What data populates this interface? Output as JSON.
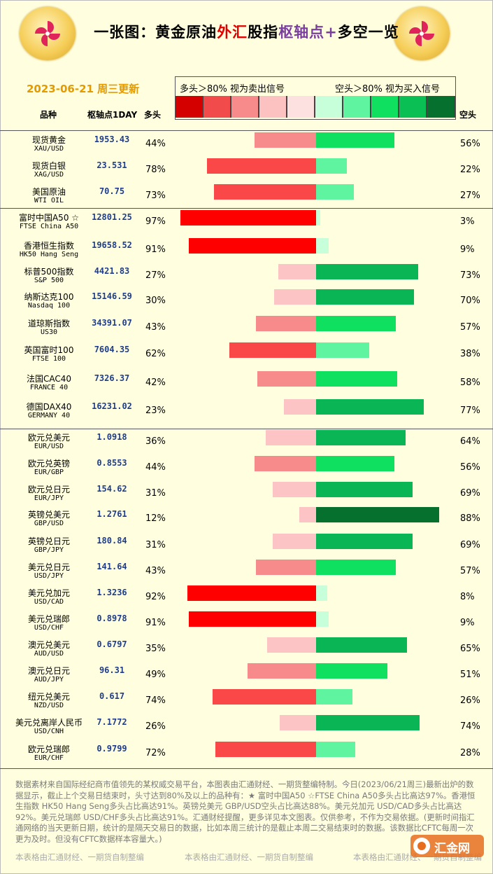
{
  "title_parts": [
    {
      "text": "一张图：黄金原油",
      "color": "black"
    },
    {
      "text": "外汇",
      "color": "red"
    },
    {
      "text": "股指",
      "color": "black"
    },
    {
      "text": "枢轴点",
      "color": "purple"
    },
    {
      "text": "+",
      "color": "purple"
    },
    {
      "text": "多空一览",
      "color": "black"
    }
  ],
  "date_label": "2023-06-21 周三更新",
  "legend": {
    "left": "多头＞80% 视为卖出信号",
    "right": "空头＞80% 视为买入信号",
    "swatch_colors": [
      "#d40000",
      "#f24b4b",
      "#f78a8a",
      "#fcc1c1",
      "#fde0e0",
      "#c6ffd9",
      "#5ff5a0",
      "#10e060",
      "#0ac054",
      "#06702e"
    ]
  },
  "headers": {
    "name": "品种",
    "pivot": "枢轴点1DAY",
    "long": "多头",
    "short": "空头"
  },
  "chart_data": {
    "type": "bar",
    "title": "一张图：黄金原油外汇股指枢轴点+多空一览",
    "xlabel": "",
    "ylabel": "",
    "series": [
      {
        "name": "多头",
        "values": [
          44,
          78,
          73,
          97,
          91,
          27,
          30,
          43,
          62,
          42,
          23,
          36,
          44,
          31,
          12,
          31,
          43,
          92,
          91,
          35,
          49,
          74,
          26,
          72
        ]
      },
      {
        "name": "空头",
        "values": [
          56,
          22,
          27,
          3,
          9,
          73,
          70,
          57,
          38,
          58,
          77,
          64,
          56,
          69,
          88,
          69,
          57,
          8,
          9,
          65,
          51,
          26,
          74,
          28
        ]
      }
    ],
    "rows": [
      {
        "cn": "现货黄金",
        "en": "XAU/USD",
        "pivot": "1953.43",
        "long": 44,
        "short": 56
      },
      {
        "cn": "现货白银",
        "en": "XAG/USD",
        "pivot": "23.531",
        "long": 78,
        "short": 22
      },
      {
        "cn": "美国原油",
        "en": "WTI OIL",
        "pivot": "70.75",
        "long": 73,
        "short": 27
      },
      {
        "cn": "富时中国A50 ☆",
        "en": "FTSE China A50",
        "pivot": "12801.25",
        "long": 97,
        "short": 3
      },
      {
        "cn": "香港恒生指数",
        "en": "HK50 Hang Seng",
        "pivot": "19658.52",
        "long": 91,
        "short": 9
      },
      {
        "cn": "标普500指数",
        "en": "S&P 500",
        "pivot": "4421.83",
        "long": 27,
        "short": 73
      },
      {
        "cn": "纳斯达克100",
        "en": "Nasdaq 100",
        "pivot": "15146.59",
        "long": 30,
        "short": 70
      },
      {
        "cn": "道琼斯指数",
        "en": "US30",
        "pivot": "34391.07",
        "long": 43,
        "short": 57
      },
      {
        "cn": "英国富时100",
        "en": "FTSE 100",
        "pivot": "7604.35",
        "long": 62,
        "short": 38
      },
      {
        "cn": "法国CAC40",
        "en": "FRANCE 40",
        "pivot": "7326.37",
        "long": 42,
        "short": 58
      },
      {
        "cn": "德国DAX40",
        "en": "GERMANY 40",
        "pivot": "16231.02",
        "long": 23,
        "short": 77
      },
      {
        "cn": "欧元兑美元",
        "en": "EUR/USD",
        "pivot": "1.0918",
        "long": 36,
        "short": 64
      },
      {
        "cn": "欧元兑英镑",
        "en": "EUR/GBP",
        "pivot": "0.8553",
        "long": 44,
        "short": 56
      },
      {
        "cn": "欧元兑日元",
        "en": "EUR/JPY",
        "pivot": "154.62",
        "long": 31,
        "short": 69
      },
      {
        "cn": "英镑兑美元",
        "en": "GBP/USD",
        "pivot": "1.2761",
        "long": 12,
        "short": 88
      },
      {
        "cn": "英镑兑日元",
        "en": "GBP/JPY",
        "pivot": "180.84",
        "long": 31,
        "short": 69
      },
      {
        "cn": "美元兑日元",
        "en": "USD/JPY",
        "pivot": "141.64",
        "long": 43,
        "short": 57
      },
      {
        "cn": "美元兑加元",
        "en": "USD/CAD",
        "pivot": "1.3236",
        "long": 92,
        "short": 8
      },
      {
        "cn": "美元兑瑞郎",
        "en": "USD/CHF",
        "pivot": "0.8978",
        "long": 91,
        "short": 9
      },
      {
        "cn": "澳元兑美元",
        "en": "AUD/USD",
        "pivot": "0.6797",
        "long": 35,
        "short": 65
      },
      {
        "cn": "澳元兑日元",
        "en": "AUD/JPY",
        "pivot": "96.31",
        "long": 49,
        "short": 51
      },
      {
        "cn": "纽元兑美元",
        "en": "NZD/USD",
        "pivot": "0.617",
        "long": 74,
        "short": 26
      },
      {
        "cn": "美元兑离岸人民币",
        "en": "USD/CNH",
        "pivot": "7.1772",
        "long": 26,
        "short": 74
      },
      {
        "cn": "欧元兑瑞郎",
        "en": "EUR/CHF",
        "pivot": "0.9799",
        "long": 72,
        "short": 28
      }
    ]
  },
  "footer_text": "数据素材来自国际经纪商市值领先的某权威交易平台，本图表由汇通财经、一期货整编特制。今日(2023/06/21周三)最新出炉的数据显示，截止上个交易日结束时，头寸达到80%及以上的品种有：★ 富时中国A50 ☆FTSE China A50多头占比高达97%。香港恒生指数 HK50 Hang Seng多头占比高达91%。英镑兑美元 GBP/USD空头占比高达88%。美元兑加元 USD/CAD多头占比高达92%。美元兑瑞郎 USD/CHF多头占比高达91%。汇通财经提醒，更多详见本文图表。仅供参考，不作为交易依据。(更新时间指汇通网络的当天更新日期，统计的是隔天交易日的数据，比如本周三统计的是截止本周二交易结束时的数据。该数据比CFTC每周一次更为及时。但没有CFTC数据样本容量大。)",
  "credits": [
    "本表格由汇通财经、一期货自制整编",
    "本表格由汇通财经、一期货自制整编",
    "本表格由汇通财经、一期货自制整编"
  ],
  "watermark": "汇金网"
}
